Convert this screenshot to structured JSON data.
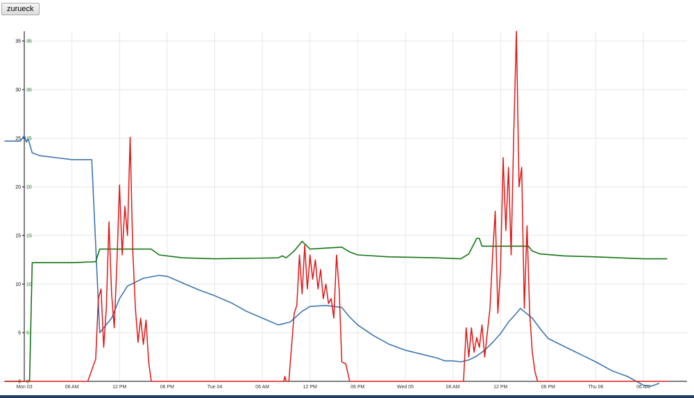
{
  "toolbar": {
    "back_label": "zurueck"
  },
  "colors": {
    "blue": "#3a75b0",
    "green": "#127512",
    "red": "#e01515",
    "grid": "#e6e6e6",
    "axis": "#000000",
    "left_axis_labels": "#000000",
    "right_axis_labels": "#127512"
  },
  "chart_data": {
    "type": "line",
    "title": "",
    "xlabel": "",
    "ylabel": "",
    "grid": true,
    "x_range": [
      "2014-03-03T00:00",
      "2014-03-06T11:30"
    ],
    "x_ticks": [
      {
        "label": "Mon 03",
        "x": "2014-03-03T00:00"
      },
      {
        "label": "06 AM",
        "x": "2014-03-03T06:00"
      },
      {
        "label": "12 PM",
        "x": "2014-03-03T12:00"
      },
      {
        "label": "06 PM",
        "x": "2014-03-03T18:00"
      },
      {
        "label": "Tue 04",
        "x": "2014-03-04T00:00"
      },
      {
        "label": "06 AM",
        "x": "2014-03-04T06:00"
      },
      {
        "label": "12 PM",
        "x": "2014-03-04T12:00"
      },
      {
        "label": "06 PM",
        "x": "2014-03-04T18:00"
      },
      {
        "label": "Wed 05",
        "x": "2014-03-05T00:00"
      },
      {
        "label": "06 AM",
        "x": "2014-03-05T06:00"
      },
      {
        "label": "12 PM",
        "x": "2014-03-05T12:00"
      },
      {
        "label": "06 PM",
        "x": "2014-03-05T18:00"
      },
      {
        "label": "Thu 06",
        "x": "2014-03-06T00:00"
      },
      {
        "label": "06 AM",
        "x": "2014-03-06T06:00"
      }
    ],
    "left_axis": {
      "ylim": [
        0,
        36
      ],
      "ticks": [
        "0",
        "5",
        "10",
        "15",
        "20",
        "25",
        "30",
        "35"
      ]
    },
    "right_axis": {
      "ylim": [
        0,
        36
      ],
      "ticks": [
        "0",
        "5",
        "10",
        "15",
        "20",
        "25",
        "30",
        "35"
      ]
    },
    "series": [
      {
        "color": "#3a75b0",
        "points": [
          [
            "2014-03-02T21:30",
            24.7
          ],
          [
            "2014-03-02T23:30",
            24.7
          ],
          [
            "2014-03-03T00:00",
            25.3
          ],
          [
            "2014-03-03T00:15",
            24.6
          ],
          [
            "2014-03-03T00:30",
            24.9
          ],
          [
            "2014-03-03T01:00",
            23.5
          ],
          [
            "2014-03-03T02:00",
            23.2
          ],
          [
            "2014-03-03T04:00",
            23.0
          ],
          [
            "2014-03-03T06:00",
            22.8
          ],
          [
            "2014-03-03T08:30",
            22.8
          ],
          [
            "2014-03-03T09:30",
            5.0
          ],
          [
            "2014-03-03T11:00",
            6.5
          ],
          [
            "2014-03-03T12:00",
            8.5
          ],
          [
            "2014-03-03T13:00",
            9.8
          ],
          [
            "2014-03-03T15:00",
            10.6
          ],
          [
            "2014-03-03T17:00",
            10.9
          ],
          [
            "2014-03-03T18:00",
            10.8
          ],
          [
            "2014-03-03T20:00",
            10.1
          ],
          [
            "2014-03-03T22:00",
            9.4
          ],
          [
            "2014-03-04T00:00",
            8.8
          ],
          [
            "2014-03-04T02:00",
            8.1
          ],
          [
            "2014-03-04T04:00",
            7.2
          ],
          [
            "2014-03-04T06:00",
            6.5
          ],
          [
            "2014-03-04T08:00",
            5.8
          ],
          [
            "2014-03-04T09:30",
            6.1
          ],
          [
            "2014-03-04T11:00",
            7.2
          ],
          [
            "2014-03-04T12:00",
            7.7
          ],
          [
            "2014-03-04T14:00",
            7.8
          ],
          [
            "2014-03-04T16:00",
            7.6
          ],
          [
            "2014-03-04T17:00",
            6.6
          ],
          [
            "2014-03-04T18:00",
            5.8
          ],
          [
            "2014-03-04T20:00",
            4.7
          ],
          [
            "2014-03-04T22:00",
            3.8
          ],
          [
            "2014-03-05T00:00",
            3.2
          ],
          [
            "2014-03-05T02:00",
            2.8
          ],
          [
            "2014-03-05T04:00",
            2.4
          ],
          [
            "2014-03-05T05:00",
            2.1
          ],
          [
            "2014-03-05T06:00",
            2.1
          ],
          [
            "2014-03-05T07:00",
            2.0
          ],
          [
            "2014-03-05T08:00",
            2.2
          ],
          [
            "2014-03-05T09:00",
            2.6
          ],
          [
            "2014-03-05T10:00",
            3.2
          ],
          [
            "2014-03-05T11:00",
            4.0
          ],
          [
            "2014-03-05T12:00",
            4.9
          ],
          [
            "2014-03-05T13:00",
            6.1
          ],
          [
            "2014-03-05T14:00",
            7.0
          ],
          [
            "2014-03-05T14:30",
            7.5
          ],
          [
            "2014-03-05T16:00",
            6.5
          ],
          [
            "2014-03-05T17:00",
            5.4
          ],
          [
            "2014-03-05T18:00",
            4.4
          ],
          [
            "2014-03-05T20:00",
            3.6
          ],
          [
            "2014-03-05T22:00",
            2.8
          ],
          [
            "2014-03-06T00:00",
            2.0
          ],
          [
            "2014-03-06T02:00",
            1.1
          ],
          [
            "2014-03-06T04:00",
            0.5
          ],
          [
            "2014-03-06T06:00",
            -0.4
          ],
          [
            "2014-03-06T07:00",
            -0.5
          ],
          [
            "2014-03-06T08:00",
            -0.2
          ]
        ]
      },
      {
        "color": "#127512",
        "points": [
          [
            "2014-03-02T21:30",
            0
          ],
          [
            "2014-03-03T00:40",
            0
          ],
          [
            "2014-03-03T01:00",
            12.2
          ],
          [
            "2014-03-03T06:00",
            12.2
          ],
          [
            "2014-03-03T09:00",
            12.3
          ],
          [
            "2014-03-03T09:30",
            13.6
          ],
          [
            "2014-03-03T16:00",
            13.6
          ],
          [
            "2014-03-03T17:00",
            13.0
          ],
          [
            "2014-03-03T20:00",
            12.7
          ],
          [
            "2014-03-04T00:00",
            12.6
          ],
          [
            "2014-03-04T08:00",
            12.7
          ],
          [
            "2014-03-04T08:30",
            12.9
          ],
          [
            "2014-03-04T09:00",
            12.7
          ],
          [
            "2014-03-04T10:00",
            13.4
          ],
          [
            "2014-03-04T11:00",
            14.4
          ],
          [
            "2014-03-04T12:00",
            13.6
          ],
          [
            "2014-03-04T14:00",
            13.7
          ],
          [
            "2014-03-04T16:00",
            13.8
          ],
          [
            "2014-03-04T17:00",
            13.3
          ],
          [
            "2014-03-04T18:00",
            13.0
          ],
          [
            "2014-03-04T22:00",
            12.8
          ],
          [
            "2014-03-05T04:00",
            12.7
          ],
          [
            "2014-03-05T07:00",
            12.6
          ],
          [
            "2014-03-05T08:00",
            13.1
          ],
          [
            "2014-03-05T09:00",
            14.7
          ],
          [
            "2014-03-05T09:20",
            14.7
          ],
          [
            "2014-03-05T09:40",
            13.9
          ],
          [
            "2014-03-05T15:30",
            13.9
          ],
          [
            "2014-03-05T16:00",
            13.4
          ],
          [
            "2014-03-05T17:00",
            13.1
          ],
          [
            "2014-03-05T20:00",
            12.9
          ],
          [
            "2014-03-06T00:00",
            12.8
          ],
          [
            "2014-03-06T06:00",
            12.6
          ],
          [
            "2014-03-06T09:00",
            12.6
          ]
        ]
      },
      {
        "color": "#e01515",
        "points": [
          [
            "2014-03-02T21:30",
            0
          ],
          [
            "2014-03-03T08:00",
            0
          ],
          [
            "2014-03-03T09:00",
            2.3
          ],
          [
            "2014-03-03T09:20",
            8.5
          ],
          [
            "2014-03-03T09:40",
            9.5
          ],
          [
            "2014-03-03T10:00",
            3.5
          ],
          [
            "2014-03-03T10:20",
            7.5
          ],
          [
            "2014-03-03T10:40",
            16.4
          ],
          [
            "2014-03-03T11:00",
            9.0
          ],
          [
            "2014-03-03T11:20",
            5.5
          ],
          [
            "2014-03-03T11:40",
            12.0
          ],
          [
            "2014-03-03T12:00",
            20.2
          ],
          [
            "2014-03-03T12:20",
            13.0
          ],
          [
            "2014-03-03T12:40",
            18.0
          ],
          [
            "2014-03-03T13:00",
            15.0
          ],
          [
            "2014-03-03T13:20",
            25.1
          ],
          [
            "2014-03-03T13:40",
            13.5
          ],
          [
            "2014-03-03T14:00",
            7.5
          ],
          [
            "2014-03-03T14:20",
            4.0
          ],
          [
            "2014-03-03T14:40",
            6.5
          ],
          [
            "2014-03-03T15:00",
            3.8
          ],
          [
            "2014-03-03T15:20",
            6.3
          ],
          [
            "2014-03-03T15:40",
            2.0
          ],
          [
            "2014-03-03T16:00",
            0
          ],
          [
            "2014-03-04T08:40",
            0
          ],
          [
            "2014-03-04T08:50",
            0.5
          ],
          [
            "2014-03-04T09:00",
            0
          ],
          [
            "2014-03-04T09:20",
            0
          ],
          [
            "2014-03-04T09:40",
            3.5
          ],
          [
            "2014-03-04T10:00",
            7.0
          ],
          [
            "2014-03-04T10:20",
            7.8
          ],
          [
            "2014-03-04T10:40",
            13.0
          ],
          [
            "2014-03-04T11:00",
            9.0
          ],
          [
            "2014-03-04T11:20",
            14.0
          ],
          [
            "2014-03-04T11:40",
            9.5
          ],
          [
            "2014-03-04T12:00",
            13.0
          ],
          [
            "2014-03-04T12:20",
            10.5
          ],
          [
            "2014-03-04T12:40",
            12.5
          ],
          [
            "2014-03-04T13:00",
            9.5
          ],
          [
            "2014-03-04T13:20",
            11.5
          ],
          [
            "2014-03-04T13:40",
            8.5
          ],
          [
            "2014-03-04T14:00",
            10.0
          ],
          [
            "2014-03-04T14:20",
            8.0
          ],
          [
            "2014-03-04T14:40",
            8.5
          ],
          [
            "2014-03-04T15:00",
            6.5
          ],
          [
            "2014-03-04T15:20",
            13.0
          ],
          [
            "2014-03-04T15:40",
            9.5
          ],
          [
            "2014-03-04T16:00",
            2.0
          ],
          [
            "2014-03-04T16:30",
            1.8
          ],
          [
            "2014-03-04T17:00",
            0
          ],
          [
            "2014-03-05T07:20",
            0
          ],
          [
            "2014-03-05T07:40",
            5.5
          ],
          [
            "2014-03-05T08:00",
            2.5
          ],
          [
            "2014-03-05T08:20",
            5.5
          ],
          [
            "2014-03-05T08:40",
            3.0
          ],
          [
            "2014-03-05T09:00",
            4.5
          ],
          [
            "2014-03-05T09:20",
            3.5
          ],
          [
            "2014-03-05T09:40",
            5.8
          ],
          [
            "2014-03-05T10:00",
            2.5
          ],
          [
            "2014-03-05T10:20",
            5.0
          ],
          [
            "2014-03-05T10:40",
            7.5
          ],
          [
            "2014-03-05T11:00",
            13.0
          ],
          [
            "2014-03-05T11:20",
            17.5
          ],
          [
            "2014-03-05T11:40",
            7.0
          ],
          [
            "2014-03-05T12:00",
            11.5
          ],
          [
            "2014-03-05T12:20",
            23.0
          ],
          [
            "2014-03-05T12:40",
            15.5
          ],
          [
            "2014-03-05T13:00",
            22.0
          ],
          [
            "2014-03-05T13:20",
            13.0
          ],
          [
            "2014-03-05T13:40",
            25.5
          ],
          [
            "2014-03-05T14:00",
            36.0
          ],
          [
            "2014-03-05T14:20",
            20.0
          ],
          [
            "2014-03-05T14:40",
            22.0
          ],
          [
            "2014-03-05T15:00",
            7.5
          ],
          [
            "2014-03-05T15:20",
            16.0
          ],
          [
            "2014-03-05T15:40",
            7.0
          ],
          [
            "2014-03-05T16:00",
            3.0
          ],
          [
            "2014-03-05T16:20",
            1.0
          ],
          [
            "2014-03-05T16:40",
            0
          ],
          [
            "2014-03-06T09:00",
            0
          ]
        ]
      }
    ]
  }
}
